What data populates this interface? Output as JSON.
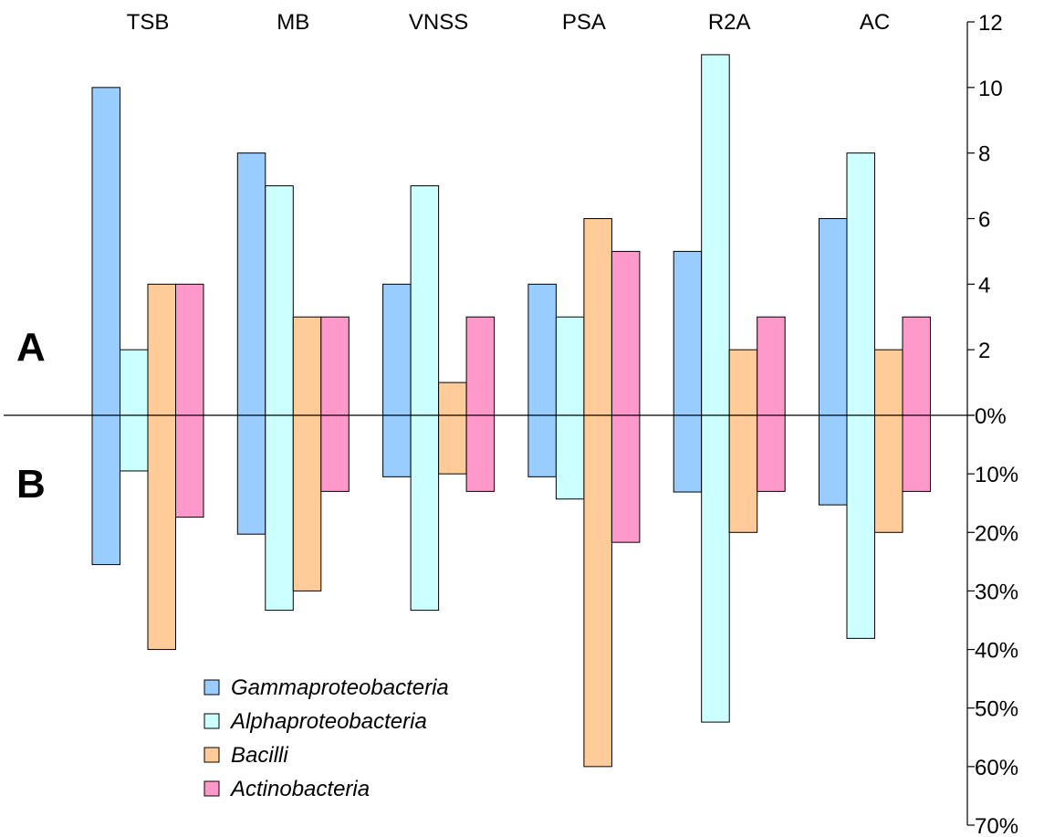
{
  "chart_data": {
    "type": "bar",
    "categories": [
      "TSB",
      "MB",
      "VNSS",
      "PSA",
      "R2A",
      "AC"
    ],
    "panel_labels": {
      "top": "A",
      "bottom": "B"
    },
    "series": [
      {
        "name": "Gammaproteobacteria",
        "color": "#99CCFF",
        "top_values": [
          10,
          8,
          4,
          4,
          5,
          6
        ],
        "bottom_percent": [
          25.5,
          20.3,
          10.5,
          10.5,
          13.1,
          15.3
        ]
      },
      {
        "name": "Alphaproteobacteria",
        "color": "#CCFFFF",
        "top_values": [
          2,
          7,
          7,
          3,
          11,
          8
        ],
        "bottom_percent": [
          9.5,
          33.3,
          33.3,
          14.3,
          52.4,
          38.1
        ]
      },
      {
        "name": "Bacilli",
        "color": "#FFCC99",
        "top_values": [
          4,
          3,
          1,
          6,
          2,
          2
        ],
        "bottom_percent": [
          40,
          30,
          10,
          60,
          20,
          20
        ]
      },
      {
        "name": "Actinobacteria",
        "color": "#FF99CC",
        "top_values": [
          4,
          3,
          3,
          5,
          3,
          3
        ],
        "bottom_percent": [
          17.4,
          13.0,
          13.0,
          21.7,
          13.0,
          13.0
        ]
      }
    ],
    "top_axis": {
      "ylim": [
        0,
        12
      ],
      "ticks": [
        "2",
        "4",
        "6",
        "8",
        "10",
        "12"
      ]
    },
    "bottom_axis": {
      "ylim": [
        0,
        70
      ],
      "ticks": [
        "0%",
        "10%",
        "20%",
        "30%",
        "40%",
        "50%",
        "60%",
        "70%"
      ]
    },
    "axis_position": "right",
    "legend_position": "bottom-left",
    "grid": false
  }
}
